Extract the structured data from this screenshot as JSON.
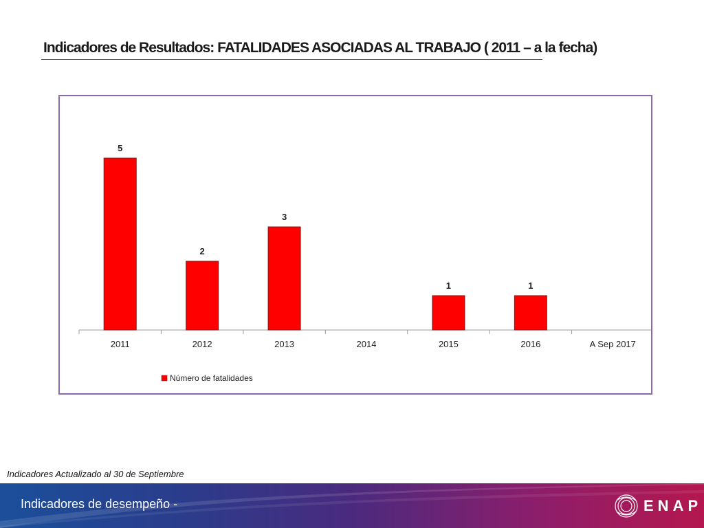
{
  "slide": {
    "title": "Indicadores de Resultados: FATALIDADES ASOCIADAS AL TRABAJO ( 2011 – a la fecha)",
    "footnote": "Indicadores Actualizado al 30 de Septiembre",
    "footer_text": "Indicadores de desempeño -",
    "logo_text": "ENAP"
  },
  "colors": {
    "bar": "#ff0000",
    "bar_stroke": "#7a1a1a",
    "frame": "#8a6aa8",
    "axis": "#9a9a9a"
  },
  "chart_data": {
    "type": "bar",
    "title": "",
    "xlabel": "",
    "ylabel": "",
    "categories": [
      "2011",
      "2012",
      "2013",
      "2014",
      "2015",
      "2016",
      "A Sep 2017"
    ],
    "series": [
      {
        "name": "Número de fatalidades",
        "values": [
          5,
          2,
          3,
          null,
          1,
          1,
          null
        ],
        "labels": [
          "5",
          "2",
          "3",
          "",
          "1",
          "1",
          ""
        ]
      }
    ],
    "ylim": [
      0,
      5
    ],
    "grid": false,
    "legend": "bottom-left"
  }
}
